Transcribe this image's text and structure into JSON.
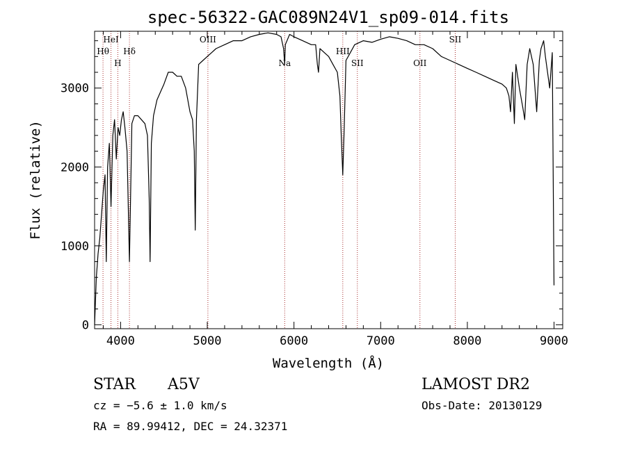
{
  "chart_data": {
    "type": "line",
    "title": "spec-56322-GAC089N24V1_sp09-014.fits",
    "xlabel": "Wavelength (Å)",
    "ylabel": "Flux (relative)",
    "xlim": [
      3700,
      9100
    ],
    "ylim": [
      -50,
      3720
    ],
    "xticks": [
      4000,
      5000,
      6000,
      7000,
      8000,
      9000
    ],
    "yticks": [
      0,
      1000,
      2000,
      3000
    ],
    "grid": false,
    "series": [
      {
        "x": [
          3700,
          3720,
          3740,
          3760,
          3780,
          3800,
          3820,
          3835,
          3850,
          3870,
          3889,
          3910,
          3930,
          3950,
          3970,
          3990,
          4010,
          4030,
          4050,
          4075,
          4102,
          4130,
          4160,
          4200,
          4240,
          4280,
          4310,
          4330,
          4340,
          4355,
          4380,
          4420,
          4460,
          4500,
          4550,
          4600,
          4650,
          4700,
          4750,
          4800,
          4830,
          4850,
          4861,
          4875,
          4900,
          4950,
          5000,
          5050,
          5100,
          5200,
          5300,
          5400,
          5500,
          5600,
          5700,
          5800,
          5850,
          5880,
          5893,
          5900,
          5950,
          6000,
          6100,
          6200,
          6250,
          6270,
          6283,
          6300,
          6350,
          6400,
          6450,
          6500,
          6530,
          6545,
          6563,
          6580,
          6600,
          6650,
          6700,
          6800,
          6900,
          7000,
          7100,
          7200,
          7300,
          7400,
          7500,
          7600,
          7700,
          7800,
          7900,
          8000,
          8100,
          8200,
          8300,
          8400,
          8450,
          8480,
          8498,
          8520,
          8542,
          8560,
          8600,
          8640,
          8662,
          8690,
          8720,
          8760,
          8800,
          8830,
          8850,
          8880,
          8900,
          8950,
          8980,
          9000
        ],
        "y": [
          0,
          600,
          900,
          1100,
          1400,
          1700,
          1900,
          800,
          2000,
          2300,
          1500,
          2400,
          2600,
          2100,
          2500,
          2400,
          2600,
          2700,
          2500,
          2200,
          800,
          2550,
          2650,
          2650,
          2600,
          2550,
          2400,
          1600,
          800,
          2300,
          2650,
          2850,
          2950,
          3050,
          3200,
          3200,
          3150,
          3150,
          3000,
          2700,
          2600,
          2200,
          1200,
          2600,
          3300,
          3350,
          3400,
          3450,
          3500,
          3550,
          3600,
          3600,
          3650,
          3680,
          3700,
          3680,
          3650,
          3500,
          3300,
          3550,
          3680,
          3650,
          3600,
          3550,
          3550,
          3300,
          3200,
          3500,
          3450,
          3400,
          3300,
          3200,
          2900,
          2400,
          1900,
          2500,
          3350,
          3450,
          3550,
          3600,
          3580,
          3620,
          3650,
          3630,
          3600,
          3550,
          3550,
          3500,
          3400,
          3350,
          3300,
          3250,
          3200,
          3150,
          3100,
          3050,
          3000,
          2900,
          2700,
          3200,
          2550,
          3300,
          3000,
          2750,
          2600,
          3300,
          3500,
          3300,
          2700,
          3350,
          3500,
          3600,
          3400,
          3000,
          3450,
          500
        ]
      }
    ],
    "line_markers": [
      {
        "label": "HeI",
        "x": 3889,
        "row": 1
      },
      {
        "label": "Hθ",
        "x": 3797,
        "row": 2
      },
      {
        "label": "H",
        "x": 3968,
        "row": 3
      },
      {
        "label": "Hδ",
        "x": 4102,
        "row": 2
      },
      {
        "label": "OIII",
        "x": 5007,
        "row": 1
      },
      {
        "label": "Na",
        "x": 5893,
        "row": 3
      },
      {
        "label": "HII",
        "x": 6563,
        "row": 2
      },
      {
        "label": "SII",
        "x": 6731,
        "row": 3
      },
      {
        "label": "OII",
        "x": 7453,
        "row": 3
      },
      {
        "label": "SII",
        "x": 7860,
        "row": 1
      }
    ]
  },
  "footer": {
    "object_class": "STAR",
    "subclass": "A5V",
    "survey": "LAMOST DR2",
    "cz": "cz = −5.6 ± 1.0 km/s",
    "obs_date": "Obs-Date: 20130129",
    "coords": "RA =  89.99412, DEC =  24.32371"
  },
  "colors": {
    "spectrum": "#000000",
    "marker_line": "#a52a2a"
  }
}
